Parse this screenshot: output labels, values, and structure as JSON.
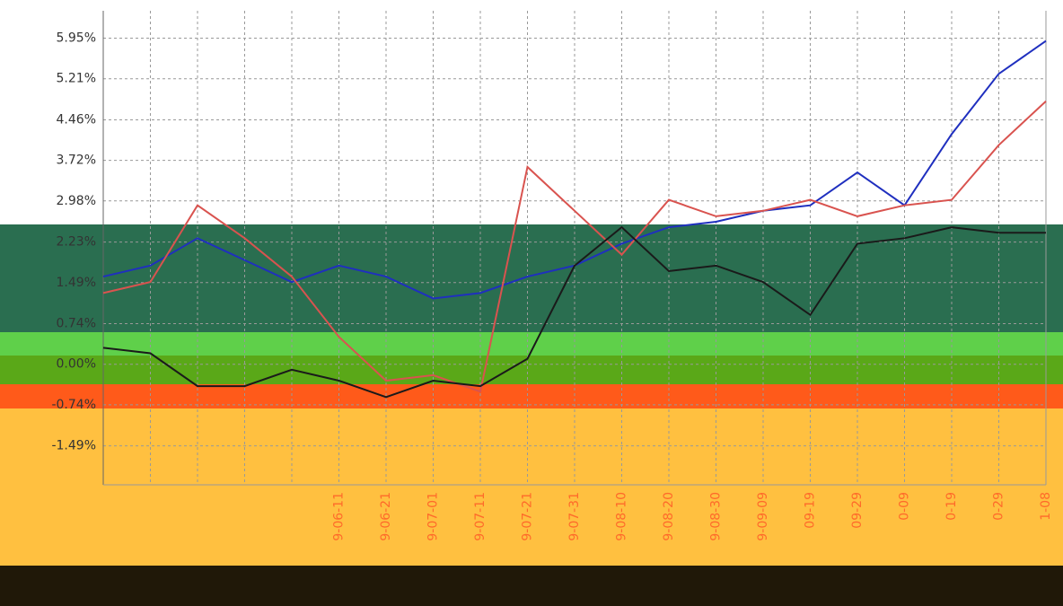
{
  "chart_data": {
    "type": "line",
    "categories": [
      null,
      null,
      null,
      null,
      null,
      "9-06-11",
      "9-06-21",
      "9-07-01",
      "9-07-11",
      "9-07-21",
      "9-07-31",
      "9-08-10",
      "9-08-20",
      "9-08-30",
      "9-09-09",
      "09-19",
      "09-29",
      "0-09",
      "0-19",
      "0-29",
      "1-08"
    ],
    "series": [
      {
        "color": "#1f2fbf",
        "values": [
          1.6,
          1.8,
          2.3,
          1.9,
          1.5,
          1.8,
          1.6,
          1.2,
          1.3,
          1.6,
          1.8,
          2.2,
          2.5,
          2.6,
          2.8,
          2.9,
          3.5,
          2.9,
          4.2,
          5.3,
          5.9
        ]
      },
      {
        "color": "#d9534f",
        "values": [
          1.3,
          1.5,
          2.9,
          2.3,
          1.6,
          0.5,
          -0.3,
          -0.2,
          -0.5,
          3.6,
          2.8,
          2.0,
          3.0,
          2.7,
          2.8,
          3.0,
          2.7,
          2.9,
          3.0,
          4.0,
          4.8
        ]
      },
      {
        "color": "#1a1a1a",
        "values": [
          0.3,
          0.2,
          -0.4,
          -0.4,
          -0.1,
          -0.3,
          -0.6,
          -0.3,
          -0.4,
          0.1,
          1.8,
          2.5,
          1.7,
          1.8,
          1.5,
          0.9,
          2.2,
          2.3,
          2.5,
          2.4,
          2.4
        ]
      }
    ],
    "ylim": [
      -2.2,
      6.45
    ],
    "yticks": [
      {
        "value": 5.95,
        "label": "5.95%"
      },
      {
        "value": 5.21,
        "label": "5.21%"
      },
      {
        "value": 4.46,
        "label": "4.46%"
      },
      {
        "value": 3.72,
        "label": "3.72%"
      },
      {
        "value": 2.98,
        "label": "2.98%"
      },
      {
        "value": 2.23,
        "label": "2.23%"
      },
      {
        "value": 1.49,
        "label": "1.49%"
      },
      {
        "value": 0.74,
        "label": "0.74%"
      },
      {
        "value": 0,
        "label": "0.00%"
      },
      {
        "value": -0.74,
        "label": "-0.74%"
      },
      {
        "value": -1.49,
        "label": "-1.49%"
      }
    ],
    "grid": true
  }
}
